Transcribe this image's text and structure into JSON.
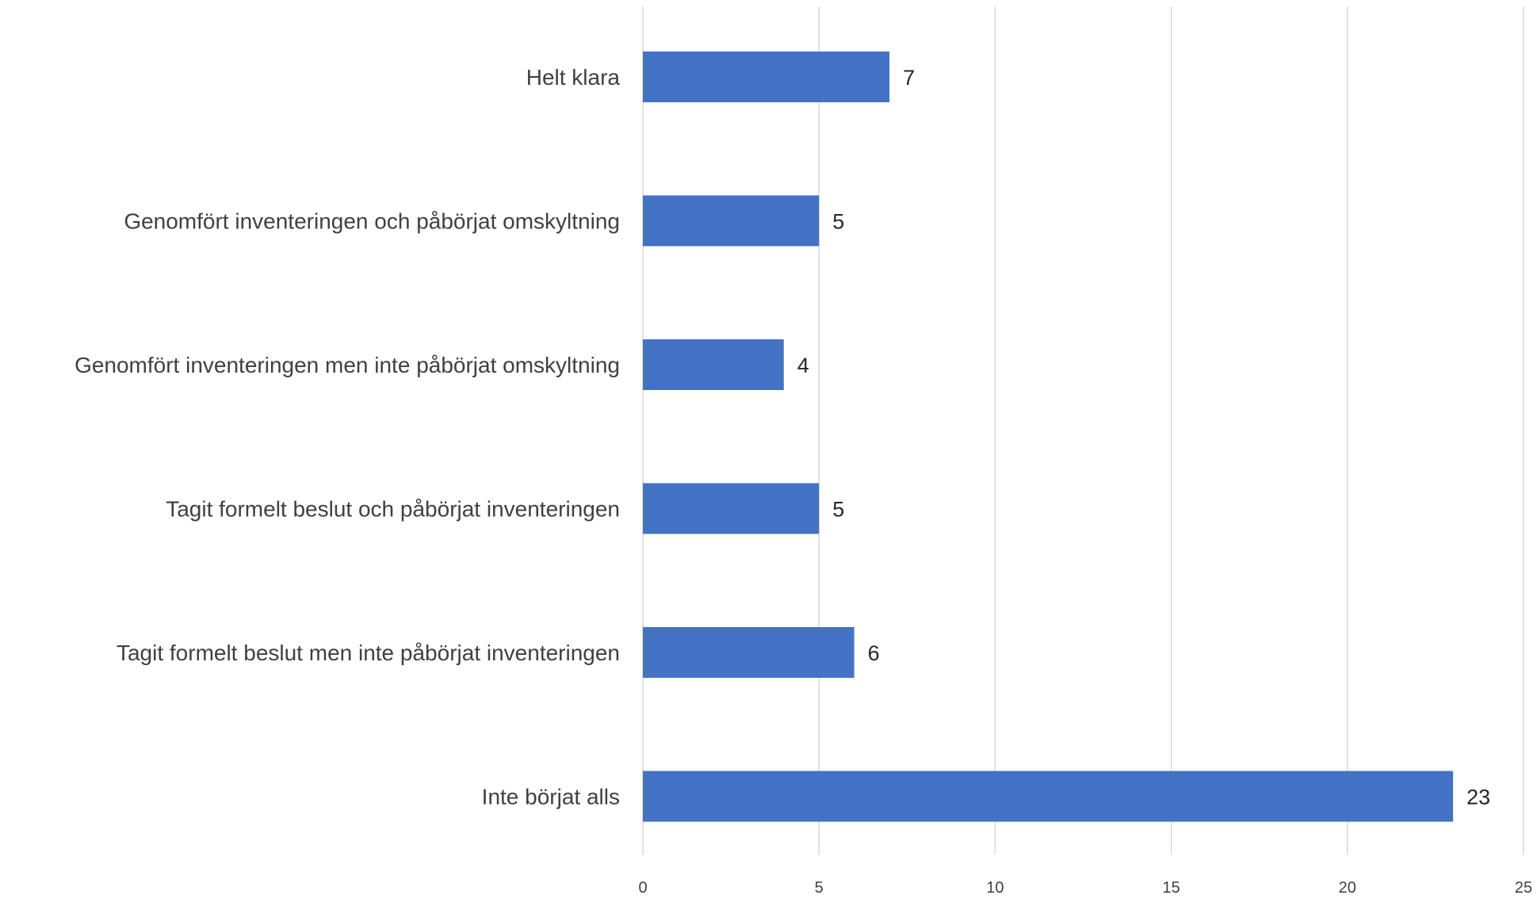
{
  "chart_data": {
    "type": "bar",
    "orientation": "horizontal",
    "title": "",
    "xlabel": "",
    "ylabel": "",
    "categories": [
      "Helt klara",
      "Genomfört inventeringen och påbörjat omskyltning",
      "Genomfört inventeringen men inte påbörjat omskyltning",
      "Tagit formelt beslut och påbörjat inventeringen",
      "Tagit formelt beslut men inte påbörjat inventeringen",
      "Inte börjat alls"
    ],
    "values": [
      7,
      5,
      4,
      5,
      6,
      23
    ],
    "value_labels": [
      "7",
      "5",
      "4",
      "5",
      "6",
      "23"
    ],
    "xlim": [
      0,
      25
    ],
    "x_ticks": [
      0,
      5,
      10,
      15,
      20,
      25
    ],
    "x_tick_labels": [
      "0",
      "5",
      "10",
      "15",
      "20",
      "25"
    ],
    "grid": "vertical",
    "legend": "none",
    "colors": {
      "bar": "#4472C4",
      "grid": "#d9d9d9",
      "category_text": "#404040",
      "value_text": "#262626",
      "tick_text": "#404040"
    }
  }
}
